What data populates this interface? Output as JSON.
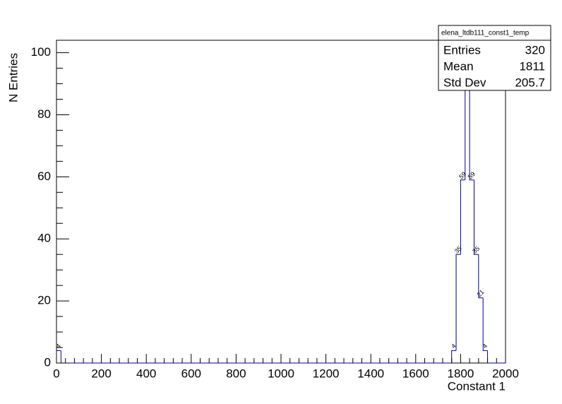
{
  "chart_data": {
    "type": "histogram",
    "title": "elena_ltdb111_const1_temp",
    "x_label": "Constant 1",
    "y_label": "N Entries",
    "bins": [
      0,
      20,
      40,
      60,
      80,
      100,
      120,
      140,
      160,
      180,
      200,
      220,
      240,
      260,
      280,
      300,
      320,
      340,
      360,
      380,
      400,
      420,
      440,
      460,
      480,
      500,
      520,
      540,
      560,
      580,
      600,
      620,
      640,
      660,
      680,
      700,
      720,
      740,
      760,
      780,
      800,
      820,
      840,
      860,
      880,
      900,
      920,
      940,
      960,
      980,
      1000,
      1020,
      1040,
      1060,
      1080,
      1100,
      1120,
      1140,
      1160,
      1180,
      1200,
      1220,
      1240,
      1260,
      1280,
      1300,
      1320,
      1340,
      1360,
      1380,
      1400,
      1420,
      1440,
      1460,
      1480,
      1500,
      1520,
      1540,
      1560,
      1580,
      1600,
      1620,
      1640,
      1660,
      1680,
      1700,
      1720,
      1740,
      1760,
      1780,
      1800,
      1820,
      1840,
      1860,
      1880,
      1900,
      1920,
      1940,
      1960,
      1980,
      2000
    ],
    "values": [
      4,
      0,
      0,
      0,
      0,
      0,
      0,
      0,
      0,
      0,
      0,
      0,
      0,
      0,
      0,
      0,
      0,
      0,
      0,
      0,
      0,
      0,
      0,
      0,
      0,
      0,
      0,
      0,
      0,
      0,
      0,
      0,
      0,
      0,
      0,
      0,
      0,
      0,
      0,
      0,
      0,
      0,
      0,
      0,
      0,
      0,
      0,
      0,
      0,
      0,
      0,
      0,
      0,
      0,
      0,
      0,
      0,
      0,
      0,
      0,
      0,
      0,
      0,
      0,
      0,
      0,
      0,
      0,
      0,
      0,
      0,
      0,
      0,
      0,
      0,
      0,
      0,
      0,
      0,
      0,
      0,
      0,
      0,
      0,
      0,
      0,
      0,
      0,
      4,
      35,
      59,
      99,
      59,
      35,
      21,
      4,
      0,
      0,
      0,
      0
    ],
    "color": "#000099",
    "xlim": [
      0,
      2000
    ],
    "xticks": [
      0,
      200,
      400,
      600,
      800,
      1000,
      1200,
      1400,
      1600,
      1800,
      2000
    ],
    "ylim": [
      0,
      104
    ],
    "yticks": [
      0,
      20,
      40,
      60,
      80,
      100
    ],
    "stats": [
      {
        "label": "Entries",
        "value": 320
      },
      {
        "label": "Mean",
        "value": 1811
      },
      {
        "label": "Std Dev",
        "value": 205.7
      }
    ]
  }
}
